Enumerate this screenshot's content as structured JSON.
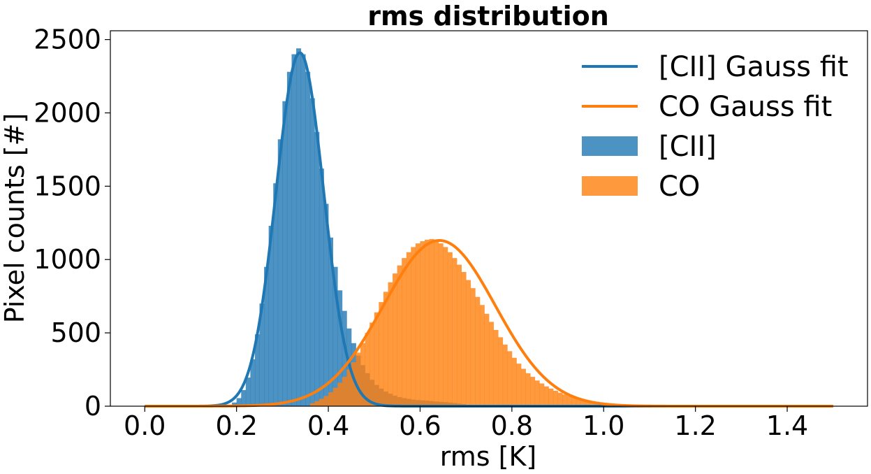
{
  "chart_data": {
    "type": "histogram",
    "title": "rms distribution",
    "xlabel": "rms [K]",
    "ylabel": "Pixel counts [#]",
    "xlim": [
      -0.075,
      1.575
    ],
    "ylim": [
      0,
      2560
    ],
    "x_ticks": [
      0.0,
      0.2,
      0.4,
      0.6,
      0.8,
      1.0,
      1.2,
      1.4
    ],
    "x_tick_labels": [
      "0.0",
      "0.2",
      "0.4",
      "0.6",
      "0.8",
      "1.0",
      "1.2",
      "1.4"
    ],
    "y_ticks": [
      0,
      500,
      1000,
      1500,
      2000,
      2500
    ],
    "y_tick_labels": [
      "0",
      "500",
      "1000",
      "1500",
      "2000",
      "2500"
    ],
    "grid": false,
    "legend_position": "top-right",
    "legend": [
      {
        "label": "[CII] Gauss fit",
        "kind": "line",
        "color": "#1f77b4"
      },
      {
        "label": "CO Gauss fit",
        "kind": "line",
        "color": "#ff7f0e"
      },
      {
        "label": "[CII]",
        "kind": "patch",
        "color": "#1f77b4"
      },
      {
        "label": "CO",
        "kind": "patch",
        "color": "#ff7f0e"
      }
    ],
    "series": [
      {
        "name": "[CII]",
        "kind": "histogram",
        "color": "#1f77b4",
        "opacity": 0.8,
        "bin_edges": [
          0.18,
          0.19,
          0.2,
          0.21,
          0.22,
          0.23,
          0.24,
          0.25,
          0.26,
          0.27,
          0.28,
          0.29,
          0.3,
          0.31,
          0.32,
          0.33,
          0.34,
          0.35,
          0.36,
          0.37,
          0.38,
          0.39,
          0.4,
          0.41,
          0.42,
          0.43,
          0.44,
          0.45,
          0.46,
          0.47,
          0.48,
          0.49,
          0.5,
          0.51,
          0.52,
          0.53,
          0.54,
          0.55,
          0.56,
          0.57,
          0.58,
          0.59,
          0.6,
          0.61,
          0.62,
          0.63,
          0.64,
          0.65,
          0.66,
          0.67,
          0.68,
          0.69,
          0.7
        ],
        "counts": [
          10,
          25,
          55,
          110,
          195,
          320,
          490,
          700,
          950,
          1230,
          1520,
          1820,
          2080,
          2280,
          2400,
          2440,
          2400,
          2280,
          2100,
          1870,
          1620,
          1380,
          1150,
          950,
          790,
          650,
          530,
          430,
          345,
          280,
          225,
          180,
          145,
          120,
          100,
          85,
          72,
          62,
          55,
          50,
          45,
          42,
          40,
          38,
          35,
          32,
          30,
          28,
          25,
          22,
          18,
          14
        ]
      },
      {
        "name": "CO",
        "kind": "histogram",
        "color": "#ff7f0e",
        "opacity": 0.8,
        "bin_edges": [
          0.36,
          0.37,
          0.38,
          0.39,
          0.4,
          0.41,
          0.42,
          0.43,
          0.44,
          0.45,
          0.46,
          0.47,
          0.48,
          0.49,
          0.5,
          0.51,
          0.52,
          0.53,
          0.54,
          0.55,
          0.56,
          0.57,
          0.58,
          0.59,
          0.6,
          0.61,
          0.62,
          0.63,
          0.64,
          0.65,
          0.66,
          0.67,
          0.68,
          0.69,
          0.7,
          0.71,
          0.72,
          0.73,
          0.74,
          0.75,
          0.76,
          0.77,
          0.78,
          0.79,
          0.8,
          0.81,
          0.82,
          0.83,
          0.84,
          0.85,
          0.86,
          0.87,
          0.88,
          0.89,
          0.9,
          0.91,
          0.92,
          0.93,
          0.94,
          0.95,
          0.96,
          0.97,
          0.98,
          0.99,
          1.0,
          1.01,
          1.02,
          1.03,
          1.04,
          1.05,
          1.06,
          1.07,
          1.08,
          1.09,
          1.1,
          1.11,
          1.12,
          1.13,
          1.14,
          1.15,
          1.16
        ],
        "counts": [
          20,
          35,
          50,
          70,
          95,
          125,
          160,
          200,
          250,
          300,
          365,
          430,
          500,
          570,
          640,
          710,
          780,
          845,
          905,
          960,
          1010,
          1050,
          1085,
          1110,
          1125,
          1135,
          1140,
          1130,
          1110,
          1085,
          1050,
          1010,
          965,
          915,
          860,
          805,
          745,
          690,
          630,
          575,
          520,
          470,
          420,
          375,
          330,
          290,
          255,
          225,
          200,
          175,
          155,
          135,
          120,
          105,
          92,
          80,
          70,
          60,
          52,
          45,
          40,
          35,
          30,
          26,
          22,
          19,
          16,
          14,
          12,
          10,
          9,
          8,
          7,
          6,
          5,
          4,
          4,
          3,
          3,
          2
        ]
      },
      {
        "name": "[CII] Gauss fit",
        "kind": "gaussian",
        "color": "#1f77b4",
        "amplitude": 2410,
        "mean": 0.338,
        "sigma": 0.052,
        "x_range": [
          0.0,
          1.5
        ]
      },
      {
        "name": "CO Gauss fit",
        "kind": "gaussian",
        "color": "#ff7f0e",
        "amplitude": 1130,
        "mean": 0.642,
        "sigma": 0.122,
        "x_range": [
          0.0,
          1.5
        ]
      }
    ]
  }
}
